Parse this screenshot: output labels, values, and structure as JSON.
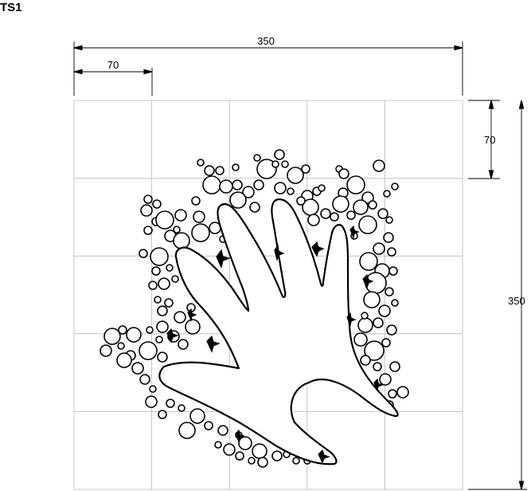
{
  "title": "TS1",
  "dimensions": {
    "total_width": "350",
    "cell_width": "70",
    "cell_height": "70",
    "total_height": "350"
  },
  "grid": {
    "rows": 5,
    "columns": 5
  }
}
